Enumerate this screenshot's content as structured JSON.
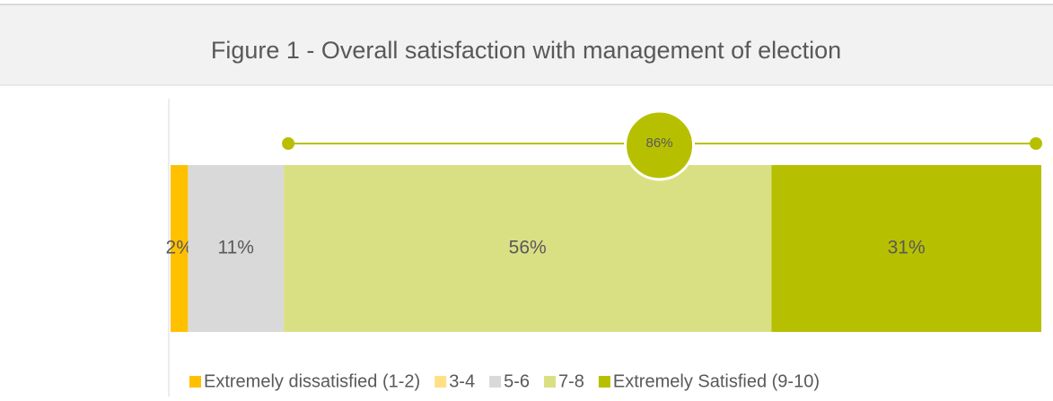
{
  "chart_data": {
    "type": "stacked-bar-horizontal",
    "title": "Figure 1 - Overall satisfaction with management of election",
    "series": [
      {
        "name": "Extremely dissatisfied (1-2)",
        "color": "#ffc000",
        "values": [
          2
        ],
        "value_labels": [
          "2%"
        ]
      },
      {
        "name": "3-4",
        "color": "#ffe085",
        "values": [
          0
        ],
        "value_labels": [
          null
        ]
      },
      {
        "name": "5-6",
        "color": "#d9d9d9",
        "values": [
          11
        ],
        "value_labels": [
          "11%"
        ]
      },
      {
        "name": "7-8",
        "color": "#d9e084",
        "values": [
          56
        ],
        "value_labels": [
          "56%"
        ]
      },
      {
        "name": "Extremely Satisfied (9-10)",
        "color": "#b7c000",
        "values": [
          31
        ],
        "value_labels": [
          "31%"
        ]
      }
    ],
    "xlim": [
      0,
      100
    ],
    "annotation": "86%",
    "legend": "bottom"
  }
}
